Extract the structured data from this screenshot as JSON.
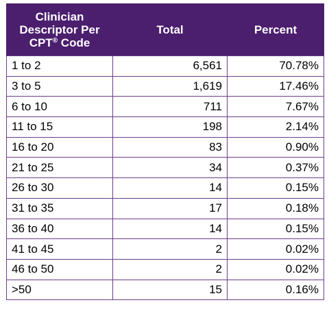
{
  "table": {
    "headers": {
      "col1_line1": "Clinician",
      "col1_line2": "Descriptor Per",
      "col1_line3_main": "CPT",
      "col1_line3_sup": "®",
      "col1_line3_tail": " Code",
      "col2": "Total",
      "col3": "Percent"
    },
    "rows": [
      {
        "range": "1 to 2",
        "total": "6,561",
        "percent": "70.78%"
      },
      {
        "range": "3 to 5",
        "total": "1,619",
        "percent": "17.46%"
      },
      {
        "range": "6 to 10",
        "total": "711",
        "percent": "7.67%"
      },
      {
        "range": "11 to 15",
        "total": "198",
        "percent": "2.14%"
      },
      {
        "range": "16 to 20",
        "total": "83",
        "percent": "0.90%"
      },
      {
        "range": "21 to 25",
        "total": "34",
        "percent": "0.37%"
      },
      {
        "range": "26 to 30",
        "total": "14",
        "percent": "0.15%"
      },
      {
        "range": "31 to 35",
        "total": "17",
        "percent": "0.18%"
      },
      {
        "range": "36 to 40",
        "total": "14",
        "percent": "0.15%"
      },
      {
        "range": "41 to 45",
        "total": "2",
        "percent": "0.02%"
      },
      {
        "range": "46 to 50",
        "total": "2",
        "percent": "0.02%"
      },
      {
        "range": ">50",
        "total": "15",
        "percent": "0.16%"
      }
    ]
  },
  "colors": {
    "header_bg": "#4b1e6e",
    "header_text": "#ffffff",
    "grid": "#6a3d8c"
  }
}
